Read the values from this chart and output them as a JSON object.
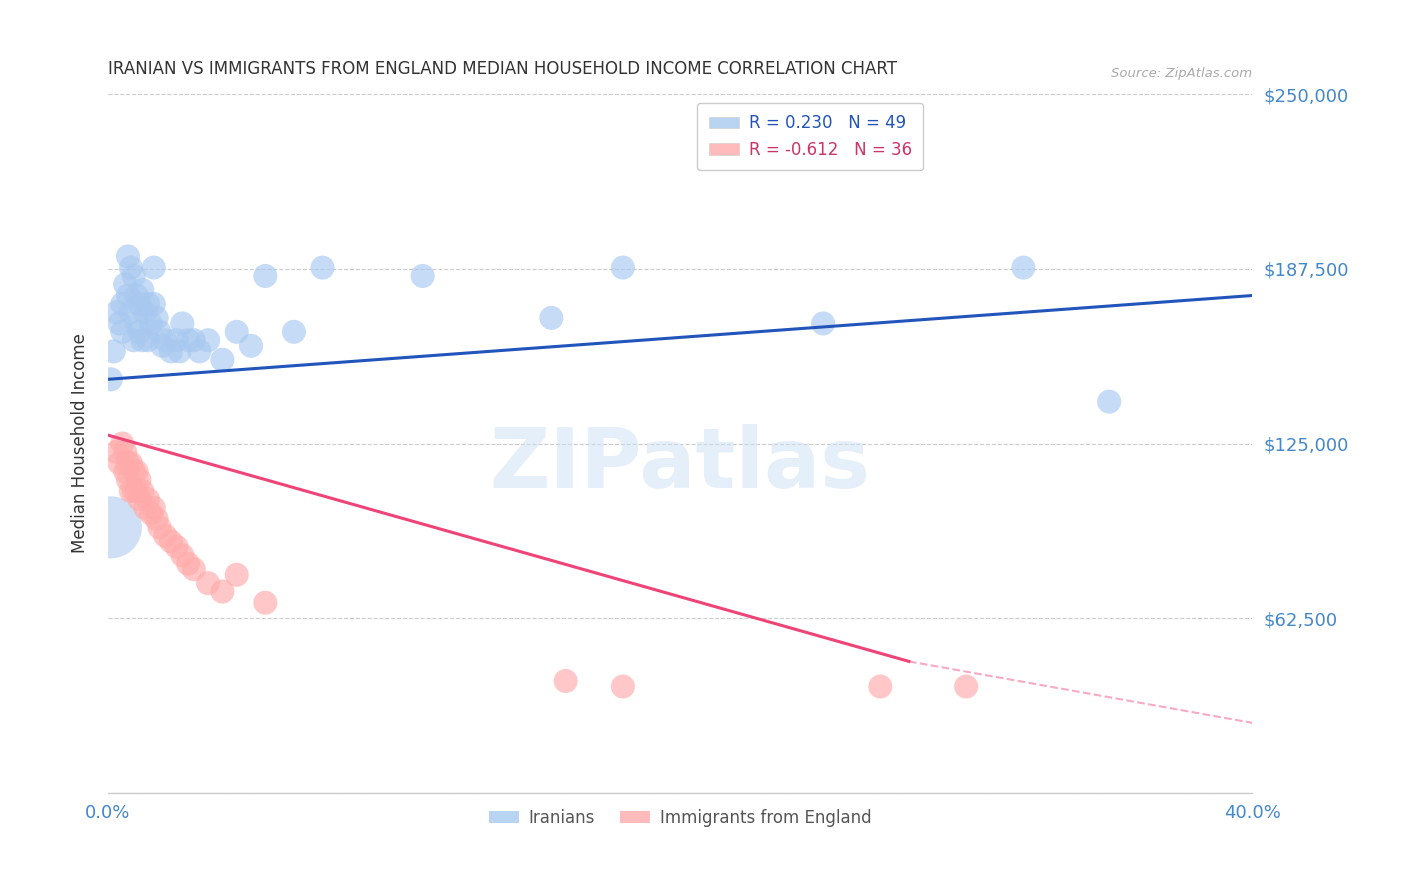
{
  "title": "IRANIAN VS IMMIGRANTS FROM ENGLAND MEDIAN HOUSEHOLD INCOME CORRELATION CHART",
  "source": "Source: ZipAtlas.com",
  "ylabel": "Median Household Income",
  "yticks": [
    0,
    62500,
    125000,
    187500,
    250000
  ],
  "ytick_labels": [
    "",
    "$62,500",
    "$125,000",
    "$187,500",
    "$250,000"
  ],
  "xlim": [
    0.0,
    0.4
  ],
  "ylim": [
    0,
    250000
  ],
  "watermark": "ZIPatlas",
  "iranians_scatter": {
    "color": "#a8c8f0",
    "x": [
      0.001,
      0.002,
      0.003,
      0.004,
      0.005,
      0.005,
      0.006,
      0.007,
      0.007,
      0.008,
      0.008,
      0.009,
      0.009,
      0.01,
      0.01,
      0.011,
      0.011,
      0.012,
      0.012,
      0.013,
      0.014,
      0.014,
      0.015,
      0.016,
      0.016,
      0.017,
      0.018,
      0.019,
      0.02,
      0.022,
      0.024,
      0.025,
      0.026,
      0.028,
      0.03,
      0.032,
      0.035,
      0.04,
      0.045,
      0.05,
      0.055,
      0.065,
      0.075,
      0.11,
      0.155,
      0.18,
      0.25,
      0.32,
      0.35
    ],
    "y": [
      148000,
      158000,
      172000,
      168000,
      175000,
      165000,
      182000,
      192000,
      178000,
      188000,
      172000,
      185000,
      162000,
      178000,
      168000,
      175000,
      165000,
      180000,
      162000,
      172000,
      162000,
      175000,
      168000,
      188000,
      175000,
      170000,
      165000,
      160000,
      162000,
      158000,
      162000,
      158000,
      168000,
      162000,
      162000,
      158000,
      162000,
      155000,
      165000,
      160000,
      185000,
      165000,
      188000,
      185000,
      170000,
      188000,
      168000,
      188000,
      140000
    ],
    "size": 300
  },
  "iranians_large": {
    "x": [
      0.001
    ],
    "y": [
      95000
    ],
    "size": 2000
  },
  "england_scatter": {
    "color": "#ffaaaa",
    "x": [
      0.003,
      0.004,
      0.005,
      0.006,
      0.006,
      0.007,
      0.007,
      0.008,
      0.008,
      0.009,
      0.009,
      0.01,
      0.01,
      0.011,
      0.011,
      0.012,
      0.013,
      0.014,
      0.015,
      0.016,
      0.017,
      0.018,
      0.02,
      0.022,
      0.024,
      0.026,
      0.028,
      0.03,
      0.035,
      0.04,
      0.045,
      0.055,
      0.16,
      0.18,
      0.27,
      0.3
    ],
    "y": [
      122000,
      118000,
      125000,
      115000,
      122000,
      112000,
      118000,
      108000,
      118000,
      115000,
      108000,
      115000,
      108000,
      112000,
      105000,
      108000,
      102000,
      105000,
      100000,
      102000,
      98000,
      95000,
      92000,
      90000,
      88000,
      85000,
      82000,
      80000,
      75000,
      72000,
      78000,
      68000,
      40000,
      38000,
      38000,
      38000
    ],
    "size": 300
  },
  "blue_line": {
    "x": [
      0.0,
      0.4
    ],
    "y": [
      148000,
      178000
    ]
  },
  "pink_line": {
    "x": [
      0.0,
      0.28
    ],
    "y": [
      128000,
      47000
    ]
  },
  "pink_dashed_line": {
    "x": [
      0.28,
      0.4
    ],
    "y": [
      47000,
      25000
    ]
  },
  "background_color": "#ffffff",
  "grid_color": "#cccccc",
  "title_color": "#333333",
  "ytick_color": "#4488cc",
  "xtick_color": "#4488cc",
  "blue_line_color": "#2255bb",
  "pink_line_color": "#ee4477"
}
